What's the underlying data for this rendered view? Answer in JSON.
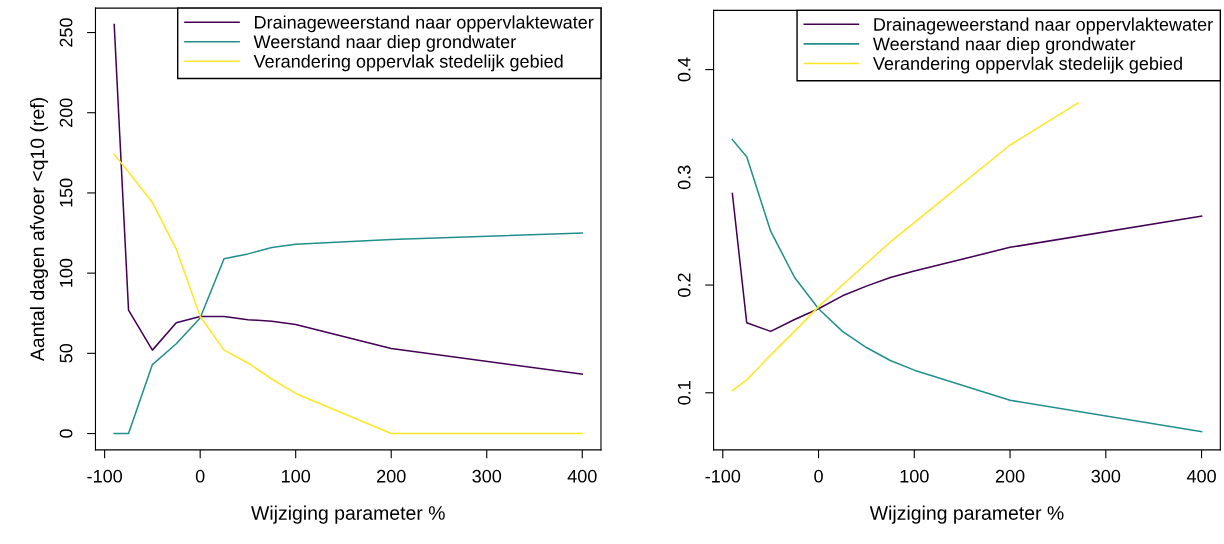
{
  "chart_data": [
    {
      "type": "line",
      "xlabel": "Wijziging parameter %",
      "ylabel": "Aantal dagen afvoer <q10 (ref)",
      "x": [
        -90,
        -75,
        -50,
        -25,
        0,
        25,
        50,
        75,
        100,
        200,
        400
      ],
      "xlim": [
        -109.6,
        419.6
      ],
      "xticks": [
        -100,
        0,
        100,
        200,
        300,
        400
      ],
      "ylim": [
        -10.2,
        265.2
      ],
      "yticks": [
        0,
        50,
        100,
        150,
        200,
        250
      ],
      "grid": false,
      "legend": "top right",
      "series": [
        {
          "name": "Drainageweerstand naar oppervlaktewater",
          "color": "#440154",
          "values": [
            255,
            77,
            52,
            69,
            73,
            73,
            71,
            70,
            68,
            53,
            37
          ]
        },
        {
          "name": "Weerstand naar diep grondwater",
          "color": "#21908c",
          "values": [
            0,
            0,
            43,
            56,
            72,
            109,
            112,
            116,
            118,
            121,
            125
          ]
        },
        {
          "name": "Verandering oppervlak stedelijk gebied",
          "color": "#fde725",
          "values": [
            174,
            163,
            144,
            115,
            73,
            52,
            44,
            34,
            25,
            0,
            0
          ]
        }
      ]
    },
    {
      "type": "line",
      "xlabel": "Wijziging parameter %",
      "x": [
        -90,
        -75,
        -50,
        -25,
        0,
        25,
        50,
        75,
        100,
        200,
        400
      ],
      "xlim": [
        -109.6,
        419.6
      ],
      "xticks": [
        -100,
        0,
        100,
        200,
        300,
        400
      ],
      "ylim": [
        0.047,
        0.455
      ],
      "yticks": [
        0.1,
        0.2,
        0.3,
        0.4
      ],
      "grid": false,
      "legend": "top right",
      "series": [
        {
          "name": "Drainageweerstand naar oppervlaktewater",
          "color": "#440154",
          "values": [
            0.285,
            0.165,
            0.157,
            0.168,
            0.178,
            0.19,
            0.199,
            0.207,
            0.213,
            0.235,
            0.264
          ]
        },
        {
          "name": "Weerstand naar diep grondwater",
          "color": "#21908c",
          "values": [
            0.335,
            0.319,
            0.25,
            0.207,
            0.178,
            0.157,
            0.142,
            0.13,
            0.121,
            0.093,
            0.064
          ]
        },
        {
          "name": "Verandering oppervlak stedelijk gebied",
          "color": "#fde725",
          "x": [
            -90,
            -75,
            -50,
            -25,
            0,
            25,
            50,
            75,
            100,
            200,
            271
          ],
          "values": [
            0.102,
            0.112,
            0.135,
            0.157,
            0.18,
            0.2,
            0.22,
            0.24,
            0.258,
            0.33,
            0.369
          ]
        }
      ]
    }
  ]
}
